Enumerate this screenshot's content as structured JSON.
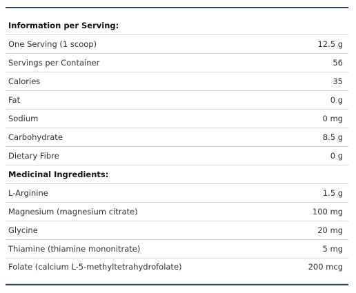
{
  "sections": [
    {
      "title": "Information per Serving:",
      "rows": [
        [
          "One Serving (1 scoop)",
          "12.5 g"
        ],
        [
          "Servings per Container",
          "56"
        ],
        [
          "Calories",
          "35"
        ],
        [
          "Fat",
          "0 g"
        ],
        [
          "Sodium",
          "0 mg"
        ],
        [
          "Carbohydrate",
          "8.5 g"
        ],
        [
          "Dietary Fibre",
          "0 g"
        ]
      ]
    },
    {
      "title": "Medicinal Ingredients:",
      "rows": [
        [
          "L-Arginine",
          "1.5 g"
        ],
        [
          "Magnesium (magnesium citrate)",
          "100 mg"
        ],
        [
          "Glycine",
          "20 mg"
        ],
        [
          "Thiamine (thiamine mononitrate)",
          "5 mg"
        ],
        [
          "Folate (calcium L-5-methyltetrahydrofolate)",
          "200 mcg"
        ]
      ]
    }
  ]
}
